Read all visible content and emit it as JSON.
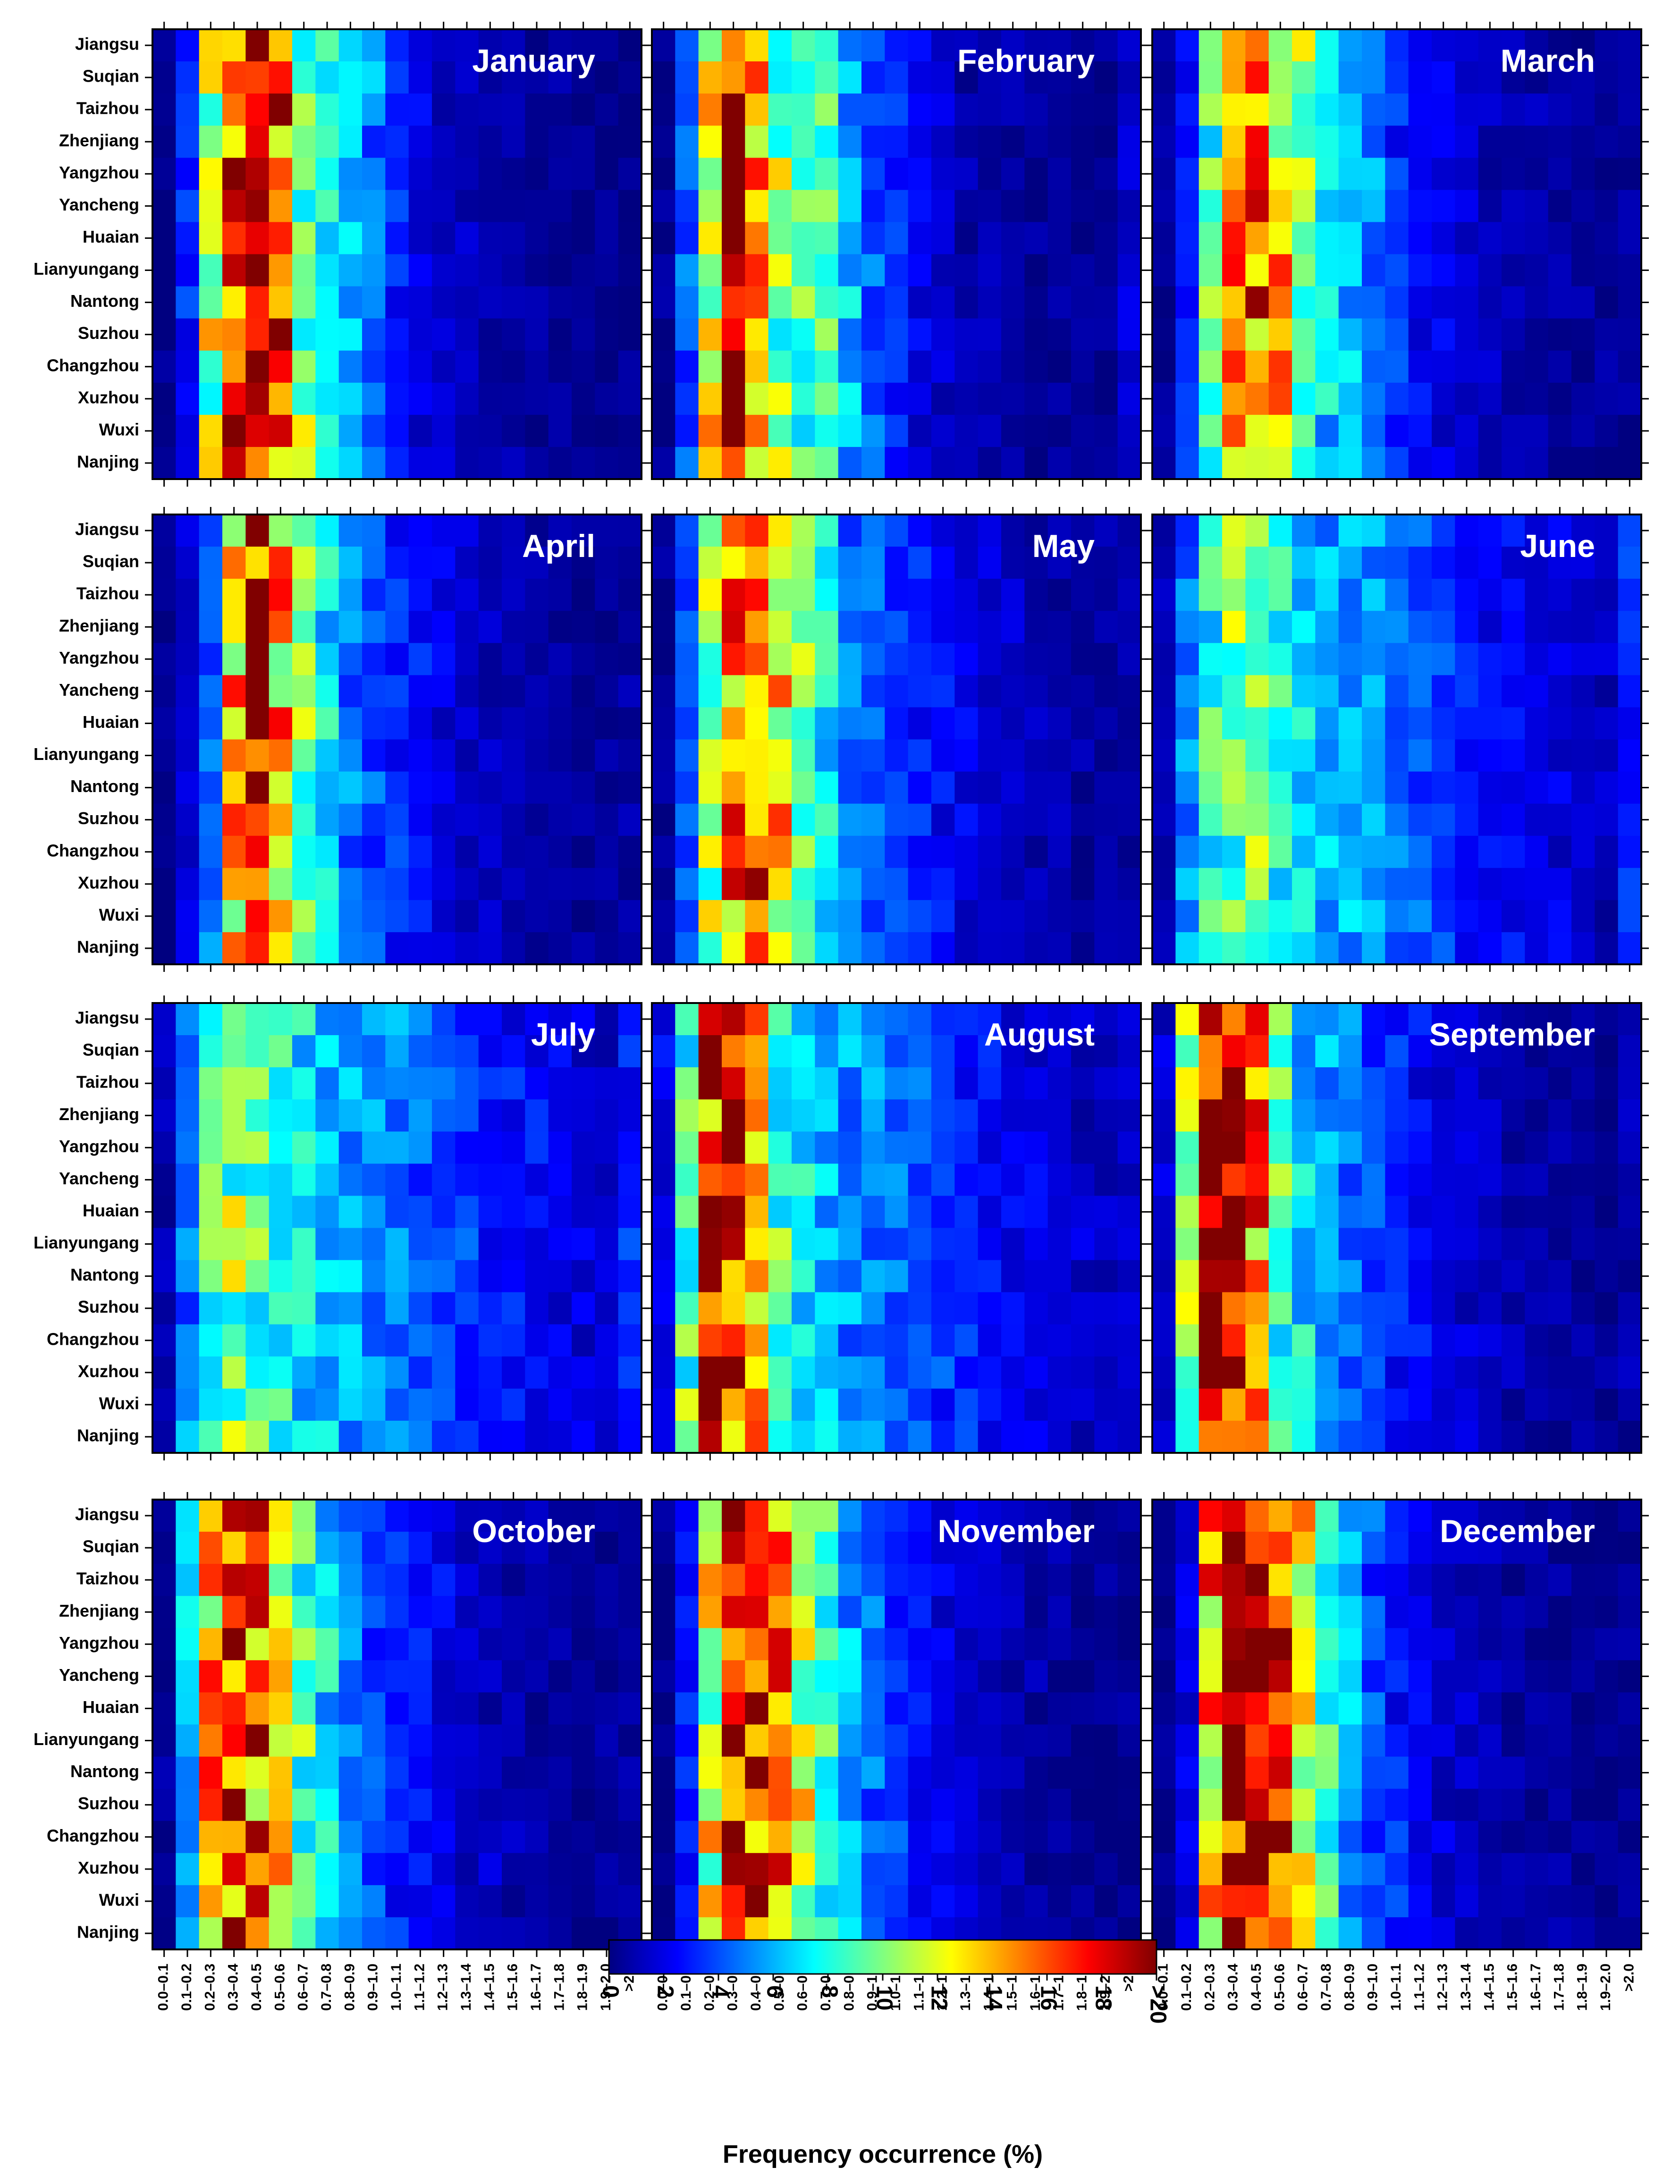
{
  "chart_data": {
    "type": "heatmap",
    "layout": "4x3 small multiples",
    "panel_titles": [
      "January",
      "February",
      "March",
      "April",
      "May",
      "June",
      "July",
      "August",
      "September",
      "October",
      "November",
      "December"
    ],
    "rows": [
      "Jiangsu",
      "Suqian",
      "Taizhou",
      "Zhenjiang",
      "Yangzhou",
      "Yancheng",
      "Huaian",
      "Lianyungang",
      "Nantong",
      "Suzhou",
      "Changzhou",
      "Xuzhou",
      "Wuxi",
      "Nanjing"
    ],
    "columns": [
      "0.0–0.1",
      "0.1–0.2",
      "0.2–0.3",
      "0.3–0.4",
      "0.4–0.5",
      "0.5–0.6",
      "0.6–0.7",
      "0.7–0.8",
      "0.8–0.9",
      "0.9–1.0",
      "1.0–1.1",
      "1.1–1.2",
      "1.2–1.3",
      "1.3–1.4",
      "1.4–1.5",
      "1.5–1.6",
      "1.6–1.7",
      "1.7–1.8",
      "1.8–1.9",
      "1.9–2.0",
      ">2.0"
    ],
    "colorbar": {
      "min": 0,
      "max": 20,
      "tick_labels": [
        "0",
        "2",
        "4",
        "6",
        "8",
        "10",
        "12",
        "14",
        "16",
        "18",
        ">20"
      ],
      "label": "Frequency occurrence (%)",
      "colormap": "jet"
    },
    "monthly_profiles": {
      "January": [
        0.2,
        3,
        11,
        18,
        19,
        16,
        10,
        8,
        6,
        5,
        3,
        2,
        1.5,
        1.2,
        1,
        0.8,
        0.6,
        0.5,
        0.4,
        0.3,
        0.3
      ],
      "February": [
        0.3,
        4,
        12,
        20,
        14,
        10,
        9,
        8,
        6,
        4,
        3,
        2,
        1.5,
        1,
        0.8,
        0.6,
        0.5,
        0.4,
        0.4,
        0.3,
        1.5
      ],
      "March": [
        0.4,
        3,
        9,
        14,
        15,
        13,
        10,
        7,
        6,
        5,
        3.5,
        2.5,
        2,
        1.5,
        1.2,
        1,
        0.8,
        0.6,
        0.5,
        0.4,
        0.5
      ],
      "April": [
        0.3,
        1.5,
        5,
        13,
        19,
        14,
        10,
        7,
        5,
        4,
        3,
        2.5,
        2,
        1.5,
        1.2,
        1,
        0.8,
        0.6,
        0.5,
        0.4,
        0.6
      ],
      "May": [
        0.3,
        4,
        11,
        15,
        16,
        13,
        10,
        7,
        5,
        4.5,
        3.5,
        3,
        2.5,
        2,
        1.5,
        1.2,
        1,
        0.8,
        0.6,
        0.5,
        0.8
      ],
      "June": [
        1,
        5,
        8,
        10,
        10,
        8,
        7,
        6,
        5.5,
        5,
        4.5,
        4,
        3.5,
        3,
        2.5,
        2.2,
        2,
        1.8,
        1.5,
        1.2,
        3
      ],
      "July": [
        1,
        5,
        9,
        10,
        9,
        8,
        7,
        6.5,
        6,
        5.5,
        5,
        4.5,
        4,
        3.5,
        3,
        2.7,
        2.4,
        2.1,
        1.8,
        1.5,
        3
      ],
      "August": [
        2,
        9,
        16,
        17,
        13,
        9,
        7,
        6,
        5.5,
        5,
        4.5,
        4,
        3.5,
        3,
        2.5,
        2.2,
        1.9,
        1.6,
        1.4,
        1.2,
        1.5
      ],
      "September": [
        1.5,
        10,
        19,
        19,
        15,
        9,
        7,
        5.5,
        4.5,
        3.5,
        3,
        2.5,
        2,
        1.5,
        1.2,
        1,
        0.8,
        0.6,
        0.5,
        0.4,
        0.8
      ],
      "October": [
        0.6,
        6,
        14,
        17,
        16,
        12,
        9,
        7,
        5,
        4,
        3,
        2.5,
        2,
        1.5,
        1.2,
        1,
        0.8,
        0.6,
        0.5,
        0.4,
        0.5
      ],
      "November": [
        0.3,
        3,
        12,
        18,
        17,
        15,
        11,
        8,
        6,
        4.5,
        3.5,
        2.5,
        2,
        1.5,
        1.2,
        1,
        0.8,
        0.6,
        0.5,
        0.4,
        0.4
      ],
      "December": [
        0.2,
        2,
        14,
        20,
        19,
        16,
        12,
        9,
        6,
        4,
        3,
        2,
        1.5,
        1.2,
        1,
        0.8,
        0.6,
        0.5,
        0.4,
        0.3,
        0.3
      ]
    }
  }
}
